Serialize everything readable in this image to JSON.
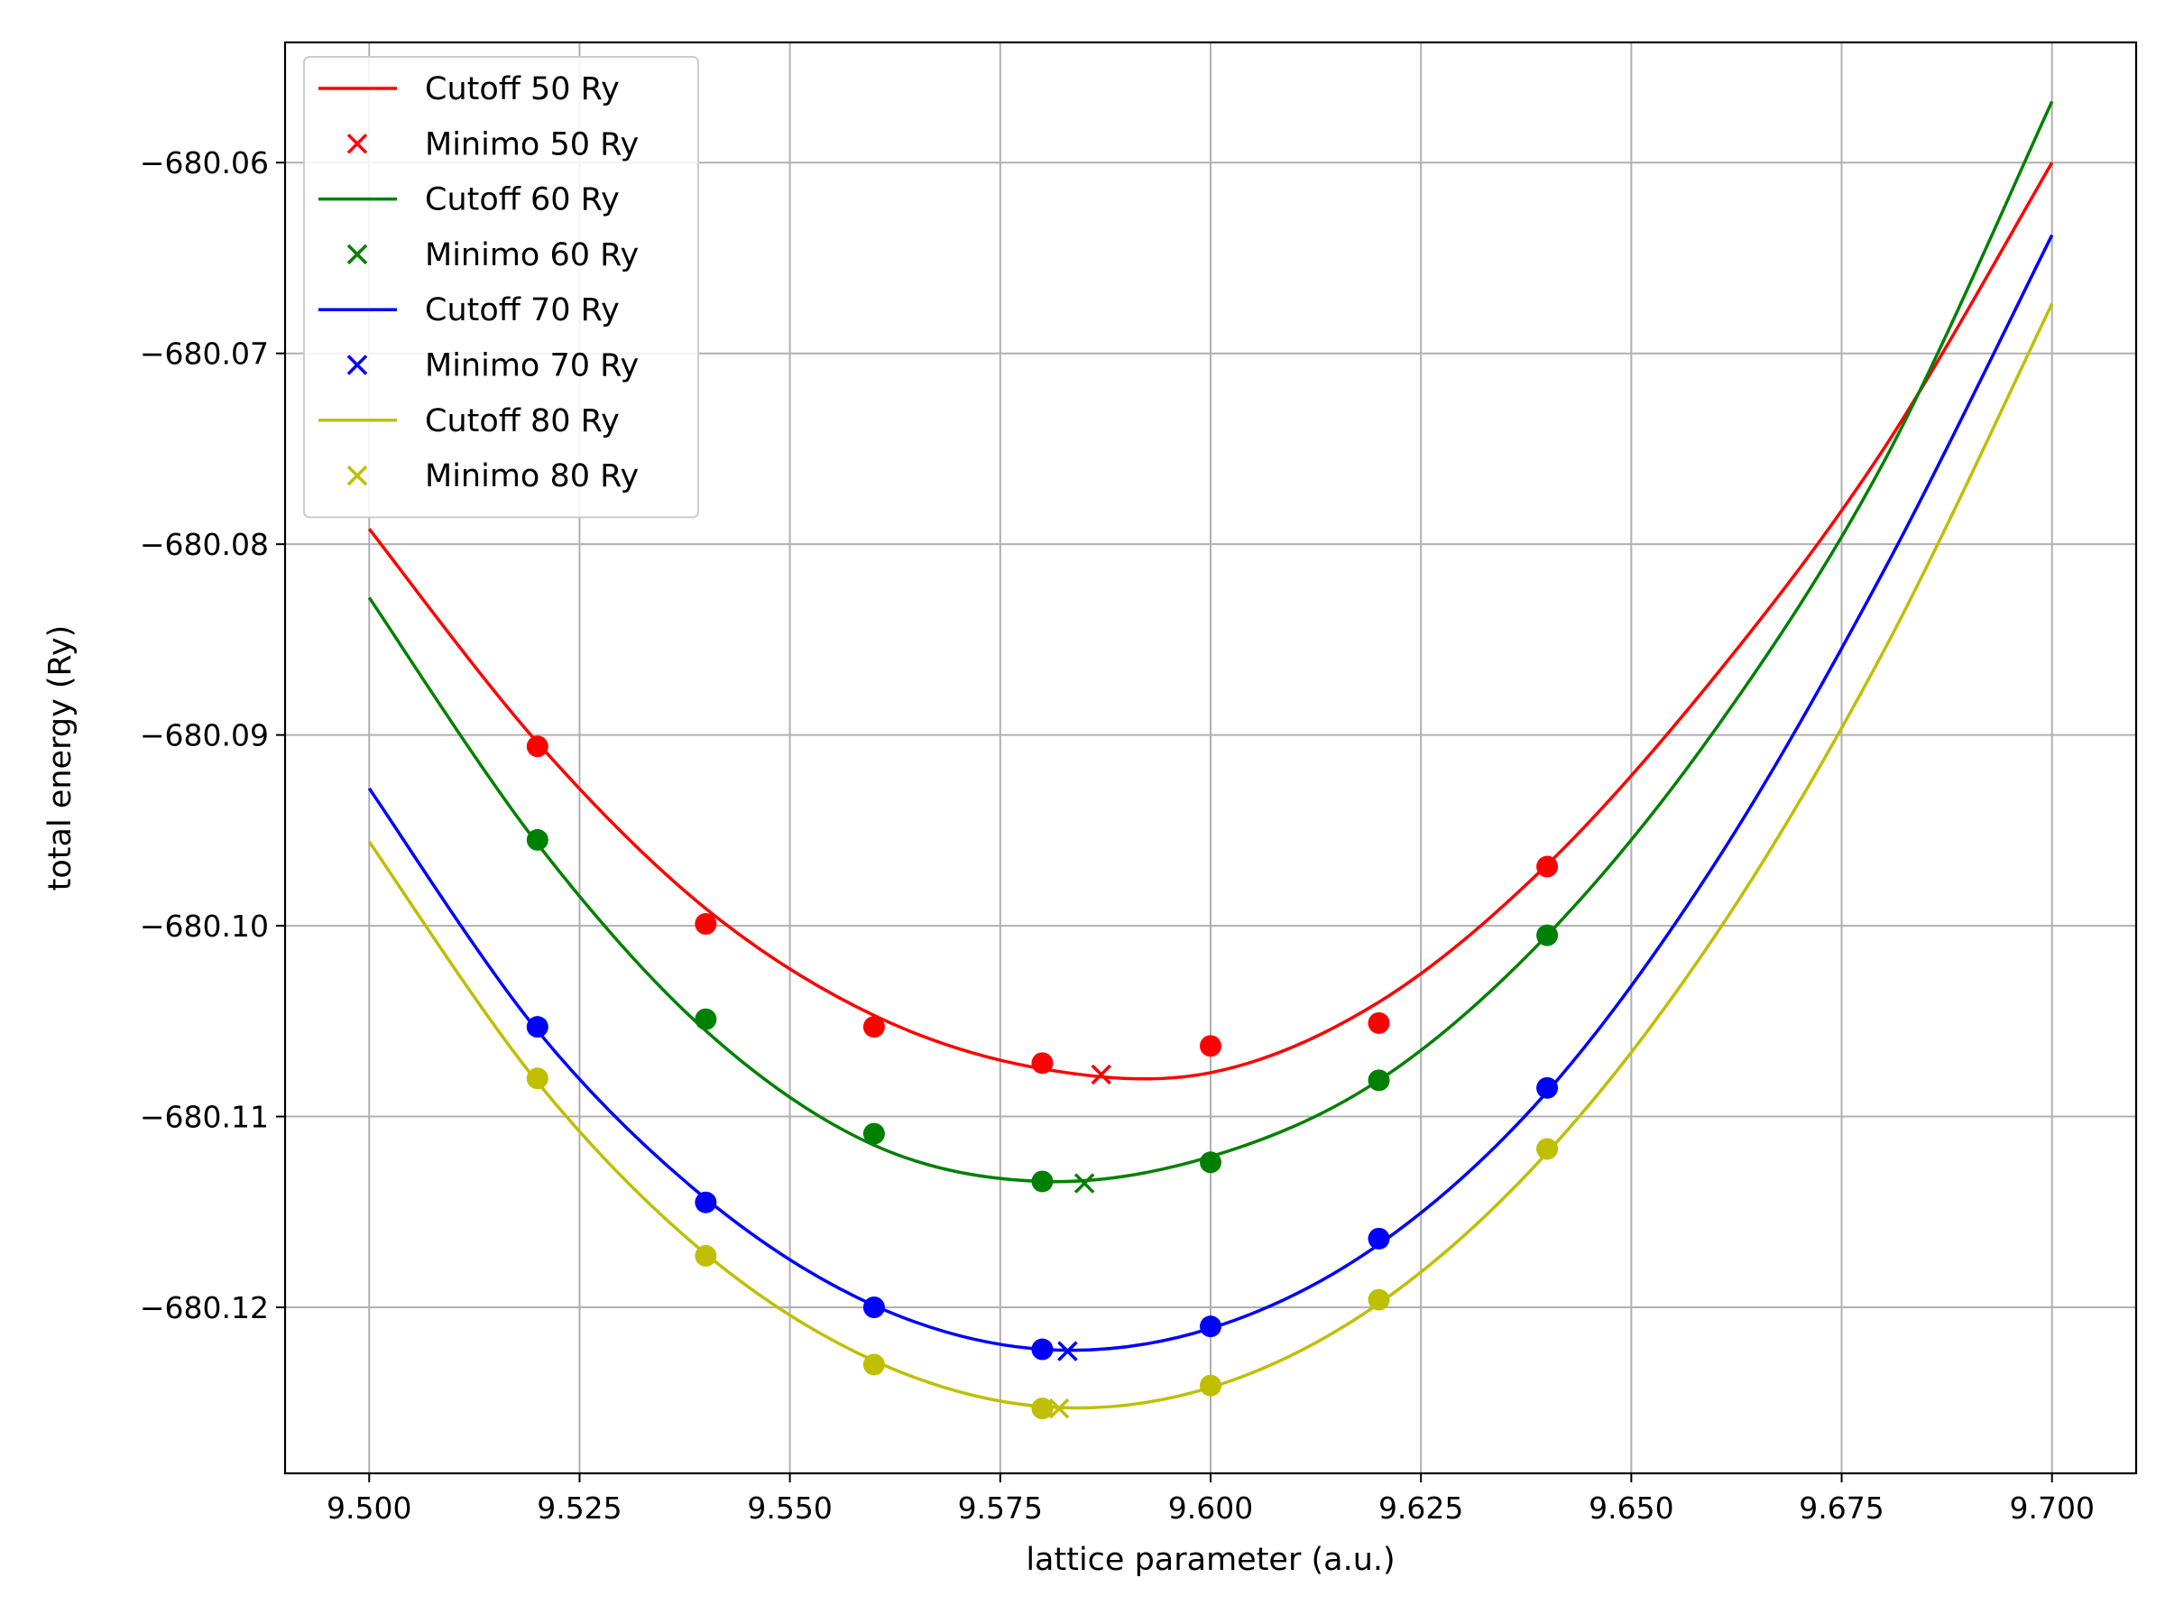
{
  "chart_data": {
    "type": "line",
    "title": "",
    "xlabel": "lattice parameter (a.u.)",
    "ylabel": "total energy (Ry)",
    "xlim": [
      9.49,
      9.71
    ],
    "ylim": [
      -680.1287,
      -680.0537
    ],
    "xticks": [
      9.5,
      9.525,
      9.55,
      9.575,
      9.6,
      9.625,
      9.65,
      9.675,
      9.7
    ],
    "xtick_labels": [
      "9.500",
      "9.525",
      "9.550",
      "9.575",
      "9.600",
      "9.625",
      "9.650",
      "9.675",
      "9.700"
    ],
    "yticks": [
      -680.12,
      -680.11,
      -680.1,
      -680.09,
      -680.08,
      -680.07,
      -680.06
    ],
    "ytick_labels": [
      "−680.12",
      "−680.11",
      "−680.10",
      "−680.09",
      "−680.08",
      "−680.07",
      "−680.06"
    ],
    "grid": true,
    "legend_position": "upper-left",
    "series": [
      {
        "name": "Cutoff 50 Ry",
        "minimum_name": "Minimo 50 Ry",
        "color": "#ff0000",
        "points": {
          "x": [
            9.52,
            9.54,
            9.56,
            9.58,
            9.6,
            9.62,
            9.64
          ],
          "y": [
            -680.0906,
            -680.0999,
            -680.1053,
            -680.1072,
            -680.1063,
            -680.1051,
            -680.0969
          ]
        },
        "fit": {
          "x": [
            9.5,
            9.52,
            9.54,
            9.56,
            9.58,
            9.6,
            9.62,
            9.64,
            9.66,
            9.68,
            9.7
          ],
          "y": [
            -680.0792,
            -680.0904,
            -680.0991,
            -680.1047,
            -680.1075,
            -680.1077,
            -680.104,
            -680.0968,
            -680.0869,
            -680.075,
            -680.06
          ]
        },
        "minimum": {
          "x": 9.587,
          "y": -680.1078
        }
      },
      {
        "name": "Cutoff 60 Ry",
        "minimum_name": "Minimo 60 Ry",
        "color": "#008000",
        "points": {
          "x": [
            9.52,
            9.54,
            9.56,
            9.58,
            9.6,
            9.62,
            9.64
          ],
          "y": [
            -680.0955,
            -680.1049,
            -680.1109,
            -680.1134,
            -680.1124,
            -680.1081,
            -680.1005
          ]
        },
        "fit": {
          "x": [
            9.5,
            9.52,
            9.54,
            9.56,
            9.58,
            9.6,
            9.62,
            9.64,
            9.66,
            9.68,
            9.7
          ],
          "y": [
            -680.0828,
            -680.0957,
            -680.1055,
            -680.1115,
            -680.1134,
            -680.1121,
            -680.1081,
            -680.1005,
            -680.0897,
            -680.0757,
            -680.0568
          ]
        },
        "minimum": {
          "x": 9.585,
          "y": -680.1135
        }
      },
      {
        "name": "Cutoff 70 Ry",
        "minimum_name": "Minimo 70 Ry",
        "color": "#0000ff",
        "points": {
          "x": [
            9.52,
            9.54,
            9.56,
            9.58,
            9.6,
            9.62,
            9.64
          ],
          "y": [
            -680.1053,
            -680.1145,
            -680.12,
            -680.1222,
            -680.121,
            -680.1164,
            -680.1085
          ]
        },
        "fit": {
          "x": [
            9.5,
            9.52,
            9.54,
            9.56,
            9.58,
            9.6,
            9.62,
            9.64,
            9.66,
            9.68,
            9.7
          ],
          "y": [
            -680.0928,
            -680.1055,
            -680.1143,
            -680.1199,
            -680.1222,
            -680.1211,
            -680.1167,
            -680.1087,
            -680.0967,
            -680.0814,
            -680.0638
          ]
        },
        "minimum": {
          "x": 9.583,
          "y": -680.1223
        }
      },
      {
        "name": "Cutoff 80 Ry",
        "minimum_name": "Minimo 80 Ry",
        "color": "#bfbf00",
        "points": {
          "x": [
            9.52,
            9.54,
            9.56,
            9.58,
            9.6,
            9.62,
            9.64
          ],
          "y": [
            -680.108,
            -680.1173,
            -680.123,
            -680.1253,
            -680.1241,
            -680.1196,
            -680.1117
          ]
        },
        "fit": {
          "x": [
            9.5,
            9.52,
            9.54,
            9.56,
            9.58,
            9.6,
            9.62,
            9.64,
            9.66,
            9.68,
            9.7
          ],
          "y": [
            -680.0956,
            -680.1082,
            -680.1172,
            -680.1228,
            -680.1252,
            -680.1242,
            -680.1198,
            -680.1119,
            -680.1005,
            -680.0856,
            -680.0674
          ]
        },
        "minimum": {
          "x": 9.582,
          "y": -680.1253
        }
      }
    ]
  }
}
